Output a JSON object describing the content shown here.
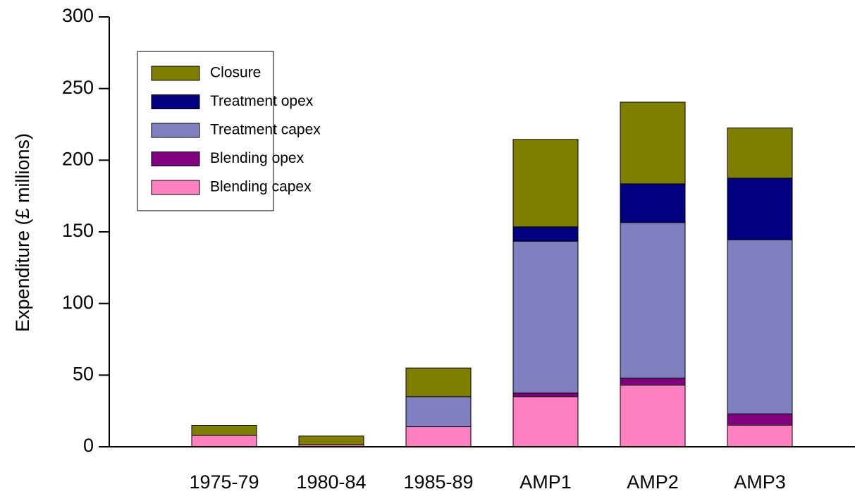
{
  "chart_data": {
    "type": "stacked-bar",
    "y_label": "Expenditure (£ millions)",
    "categories": [
      "1975-79",
      "1980-84",
      "1985-89",
      "AMP1",
      "AMP2",
      "AMP3"
    ],
    "series": [
      {
        "name": "Blending capex",
        "color": "#ff80c0",
        "values": [
          8,
          1.5,
          14,
          35,
          43,
          15
        ]
      },
      {
        "name": "Blending opex",
        "color": "#800080",
        "values": [
          0,
          0,
          0,
          2.5,
          5,
          8
        ]
      },
      {
        "name": "Treatment capex",
        "color": "#8080c0",
        "values": [
          0,
          0,
          21,
          106,
          108.5,
          121.5
        ]
      },
      {
        "name": "Treatment opex",
        "color": "#000080",
        "values": [
          0,
          0,
          0,
          10,
          27,
          43
        ]
      },
      {
        "name": "Closure",
        "color": "#808000",
        "values": [
          7,
          6,
          20,
          61,
          57,
          35
        ]
      }
    ],
    "ylim": [
      0,
      300
    ],
    "yticks": [
      0,
      50,
      100,
      150,
      200,
      250,
      300
    ]
  }
}
